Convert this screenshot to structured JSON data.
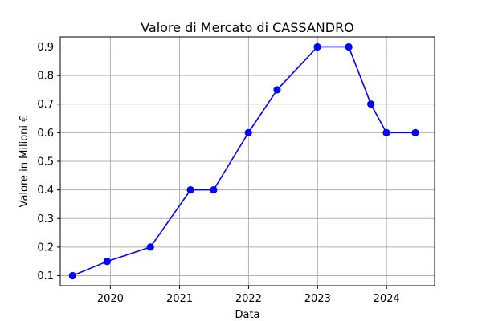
{
  "chart_data": {
    "type": "line",
    "title": "Valore di Mercato di CASSANDRO",
    "xlabel": "Data",
    "ylabel": "Valore in Milioni €",
    "x_ticks": [
      "2020",
      "2021",
      "2022",
      "2023",
      "2024"
    ],
    "y_ticks": [
      "0.1",
      "0.2",
      "0.3",
      "0.4",
      "0.5",
      "0.6",
      "0.7",
      "0.8",
      "0.9"
    ],
    "xlim": [
      "2019-04-11",
      "2024-09-11"
    ],
    "ylim": [
      0.065,
      0.935
    ],
    "grid": true,
    "series": [
      {
        "color": "#0000ff",
        "marker": "circle",
        "points": [
          {
            "x": "2019-06-15",
            "y": 0.1
          },
          {
            "x": "2019-12-15",
            "y": 0.15
          },
          {
            "x": "2020-07-31",
            "y": 0.2
          },
          {
            "x": "2021-02-28",
            "y": 0.4
          },
          {
            "x": "2021-06-30",
            "y": 0.4
          },
          {
            "x": "2021-12-31",
            "y": 0.6
          },
          {
            "x": "2022-06-01",
            "y": 0.75
          },
          {
            "x": "2022-12-31",
            "y": 0.9
          },
          {
            "x": "2023-06-15",
            "y": 0.9
          },
          {
            "x": "2023-10-10",
            "y": 0.7
          },
          {
            "x": "2023-12-31",
            "y": 0.6
          },
          {
            "x": "2024-06-01",
            "y": 0.6
          }
        ]
      }
    ]
  }
}
